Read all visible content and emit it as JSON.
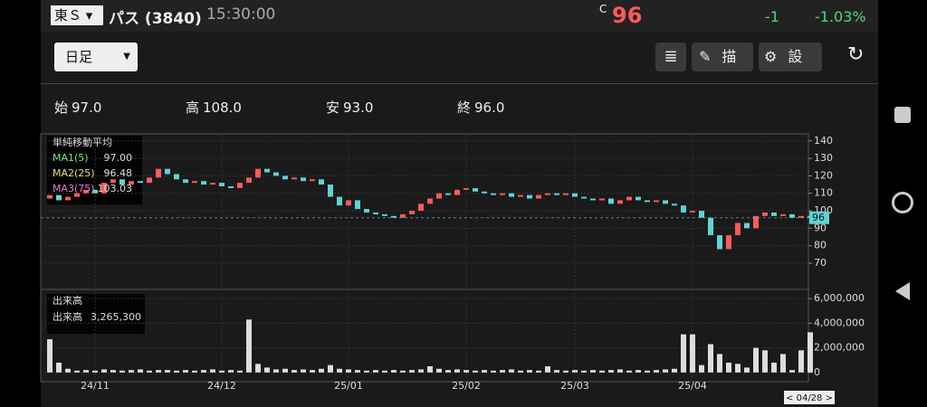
{
  "header": {
    "market": "東Ｓ",
    "name": "パス (3840)",
    "time": "15:30:00",
    "close_mark": "C",
    "price": "96",
    "change": "-1",
    "change_pct": "-1.03%"
  },
  "toolbar": {
    "period": "日足",
    "draw": "描画",
    "settings": "設定"
  },
  "ohlc": [
    {
      "label": "始",
      "value": "97.0"
    },
    {
      "label": "高",
      "value": "108.0"
    },
    {
      "label": "安",
      "value": "93.0"
    },
    {
      "label": "終",
      "value": "96.0"
    }
  ],
  "indicators": {
    "title": "単純移動平均",
    "items": [
      {
        "name": "MA1(5)",
        "value": "97.00"
      },
      {
        "name": "MA2(25)",
        "value": "96.48"
      },
      {
        "name": "MA3(75)",
        "value": "103.03"
      }
    ]
  },
  "volume_info": {
    "title": "出来高",
    "label": "出来高",
    "value": "3,265,300"
  },
  "cursor_date": "< 04/28 >",
  "chart_data": [
    {
      "type": "candlestick",
      "up_color": "#ff5a5a",
      "down_color": "#5fd3d3",
      "categories": [
        null,
        null,
        null,
        null,
        null,
        "24/11",
        null,
        null,
        null,
        null,
        null,
        null,
        null,
        null,
        null,
        null,
        null,
        null,
        null,
        "24/12",
        null,
        null,
        null,
        null,
        null,
        null,
        null,
        null,
        null,
        null,
        null,
        null,
        null,
        "25/01",
        null,
        null,
        null,
        null,
        null,
        null,
        null,
        null,
        null,
        null,
        null,
        null,
        "25/02",
        null,
        null,
        null,
        null,
        null,
        null,
        null,
        null,
        null,
        null,
        null,
        "25/03",
        null,
        null,
        null,
        null,
        null,
        null,
        null,
        null,
        null,
        null,
        null,
        null,
        "25/04",
        null,
        null,
        null,
        null,
        null,
        null,
        null,
        null,
        null,
        null,
        null,
        null,
        null
      ],
      "open": [
        107,
        109,
        106,
        108,
        110,
        112,
        110,
        116,
        118,
        115,
        117,
        116,
        119,
        124,
        121,
        118,
        116,
        117,
        115,
        116,
        114,
        113,
        116,
        119,
        124,
        122,
        120,
        118,
        119,
        117,
        118,
        115,
        108,
        103,
        106,
        101,
        99,
        98,
        97,
        96,
        98,
        100,
        104,
        107,
        110,
        109,
        112,
        113,
        111,
        110,
        109,
        110,
        108,
        109,
        107,
        109,
        110,
        109,
        110,
        108,
        107,
        106,
        107,
        104,
        106,
        108,
        106,
        105,
        106,
        104,
        103,
        99,
        100,
        96,
        86,
        78,
        86,
        93,
        90,
        97,
        99,
        97,
        98,
        96,
        97
      ],
      "close": [
        109,
        106,
        108,
        110,
        112,
        110,
        116,
        118,
        115,
        117,
        116,
        119,
        124,
        121,
        118,
        116,
        117,
        115,
        116,
        114,
        113,
        116,
        119,
        124,
        122,
        120,
        118,
        119,
        117,
        118,
        115,
        108,
        103,
        106,
        101,
        99,
        98,
        97,
        96,
        98,
        100,
        104,
        107,
        110,
        109,
        112,
        113,
        111,
        110,
        109,
        110,
        108,
        109,
        107,
        109,
        110,
        109,
        110,
        108,
        107,
        106,
        107,
        104,
        106,
        108,
        106,
        105,
        106,
        104,
        103,
        99,
        100,
        96,
        86,
        78,
        86,
        93,
        90,
        97,
        99,
        97,
        98,
        96,
        97,
        96
      ],
      "ylim": [
        56,
        143
      ],
      "yticks": [
        70,
        80,
        90,
        100,
        110,
        120,
        130,
        140
      ]
    },
    {
      "type": "bar",
      "color": "#dddddd",
      "values": [
        2700000,
        800000,
        300000,
        150000,
        200000,
        150000,
        250000,
        200000,
        150000,
        200000,
        250000,
        150000,
        200000,
        200000,
        150000,
        200000,
        150000,
        200000,
        250000,
        150000,
        200000,
        150000,
        4300000,
        700000,
        400000,
        250000,
        300000,
        200000,
        250000,
        200000,
        300000,
        600000,
        300000,
        250000,
        200000,
        150000,
        200000,
        150000,
        200000,
        150000,
        200000,
        250000,
        500000,
        300000,
        200000,
        250000,
        200000,
        150000,
        200000,
        150000,
        200000,
        250000,
        150000,
        200000,
        150000,
        500000,
        200000,
        150000,
        200000,
        150000,
        200000,
        150000,
        200000,
        250000,
        150000,
        200000,
        150000,
        200000,
        250000,
        300000,
        3100000,
        3100000,
        600000,
        2300000,
        1500000,
        800000,
        700000,
        400000,
        2000000,
        1800000,
        800000,
        1500000,
        200000,
        1800000,
        3265300
      ],
      "ylim": [
        -600000,
        6600000
      ],
      "yticks": [
        0,
        {
          "value": 2000000,
          "label": "2,000,000"
        },
        {
          "value": 4000000,
          "label": "4,000,000"
        },
        {
          "value": 6000000,
          "label": "6,000,000"
        }
      ]
    }
  ]
}
